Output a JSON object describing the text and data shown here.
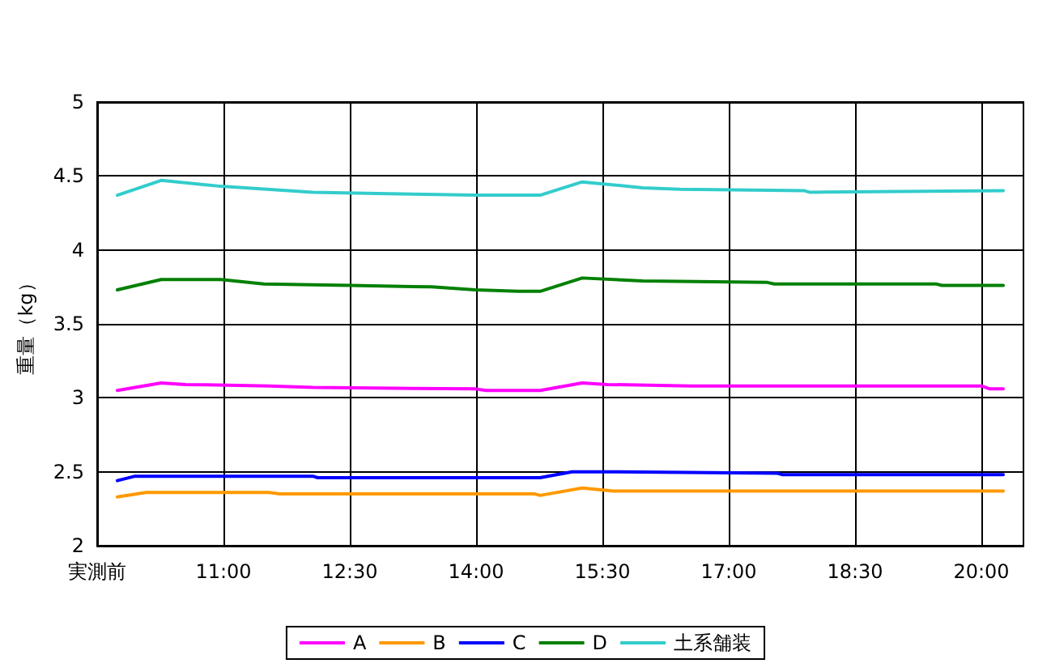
{
  "chart_data": {
    "type": "line",
    "ylabel": "重量（kg）",
    "xlim": [
      9.5,
      20.5
    ],
    "ylim": [
      2,
      5
    ],
    "xticks": [
      {
        "value": 9.5,
        "label": "実測前"
      },
      {
        "value": 11,
        "label": "11:00"
      },
      {
        "value": 12.5,
        "label": "12:30"
      },
      {
        "value": 14,
        "label": "14:00"
      },
      {
        "value": 15.5,
        "label": "15:30"
      },
      {
        "value": 17,
        "label": "17:00"
      },
      {
        "value": 18.5,
        "label": "18:30"
      },
      {
        "value": 20,
        "label": "20:00"
      }
    ],
    "yticks": [
      2,
      2.5,
      3,
      3.5,
      4,
      4.5,
      5
    ],
    "grid": true,
    "legend": "bottom",
    "marker": "none",
    "line_style": "solid",
    "series": [
      {
        "name": "A",
        "color": "#ff00ff",
        "x": [
          9.74,
          10.26,
          10.55,
          11.54,
          12.06,
          13.99,
          14.12,
          14.76,
          15.26,
          15.56,
          16.55,
          16.62,
          20.0,
          20.1,
          20.26
        ],
        "values": [
          3.05,
          3.1,
          3.09,
          3.08,
          3.07,
          3.06,
          3.05,
          3.05,
          3.1,
          3.09,
          3.08,
          3.08,
          3.08,
          3.06,
          3.06
        ]
      },
      {
        "name": "B",
        "color": "#ff9900",
        "x": [
          9.74,
          10.08,
          11.54,
          11.67,
          14.7,
          14.76,
          15.26,
          15.63,
          20.26
        ],
        "values": [
          2.33,
          2.36,
          2.36,
          2.35,
          2.35,
          2.34,
          2.39,
          2.37,
          2.37
        ]
      },
      {
        "name": "C",
        "color": "#0000ff",
        "x": [
          9.74,
          9.95,
          12.06,
          12.12,
          14.76,
          15.14,
          15.59,
          17.58,
          17.64,
          20.26
        ],
        "values": [
          2.44,
          2.47,
          2.47,
          2.46,
          2.46,
          2.5,
          2.5,
          2.49,
          2.48,
          2.48
        ]
      },
      {
        "name": "D",
        "color": "#008000",
        "x": [
          9.74,
          10.26,
          10.97,
          11.48,
          12.5,
          13.47,
          13.99,
          14.5,
          14.76,
          15.26,
          15.98,
          17.46,
          17.54,
          19.46,
          19.53,
          20.26
        ],
        "values": [
          3.73,
          3.8,
          3.8,
          3.77,
          3.76,
          3.75,
          3.73,
          3.72,
          3.72,
          3.81,
          3.79,
          3.78,
          3.77,
          3.77,
          3.76,
          3.76
        ]
      },
      {
        "name": "土系舗装",
        "color": "#33cccc",
        "x": [
          9.74,
          10.26,
          10.97,
          12.06,
          12.96,
          13.99,
          14.76,
          15.26,
          15.98,
          16.42,
          17.9,
          17.96,
          20.26
        ],
        "values": [
          4.37,
          4.47,
          4.43,
          4.39,
          4.38,
          4.37,
          4.37,
          4.46,
          4.42,
          4.41,
          4.4,
          4.39,
          4.4
        ]
      }
    ]
  }
}
